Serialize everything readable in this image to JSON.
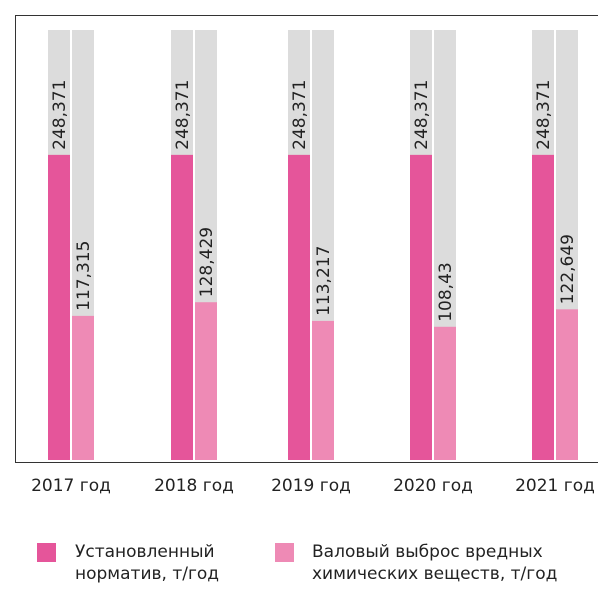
{
  "chart_data": {
    "type": "bar",
    "categories": [
      "2017 год",
      "2018 год",
      "2019 год",
      "2020 год",
      "2021 год"
    ],
    "series": [
      {
        "name": "Установленный норматив, т/год",
        "color": "#e5559a",
        "values": [
          248.371,
          248.371,
          248.371,
          248.371,
          248.371
        ],
        "value_labels": [
          "248,371",
          "248,371",
          "248,371",
          "248,371",
          "248,371"
        ]
      },
      {
        "name": "Валовый выброс вредных химических веществ, т/год",
        "color": "#ee8ab5",
        "values": [
          117.315,
          128.429,
          113.217,
          108.43,
          122.649
        ],
        "value_labels": [
          "117,315",
          "128,429",
          "113,217",
          "108,43",
          "122,649"
        ]
      }
    ],
    "ylim": [
      0,
      350
    ]
  }
}
